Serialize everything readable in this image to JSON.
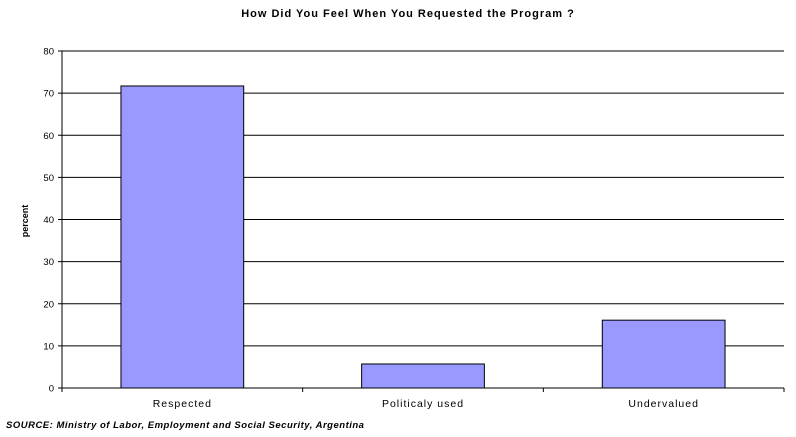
{
  "chart_data": {
    "type": "bar",
    "title": "How Did You Feel When You Requested the Program ?",
    "ylabel": "percent",
    "xlabel": "",
    "categories": [
      "Respected",
      "Politicaly used",
      "Undervalued"
    ],
    "values": [
      71.7,
      5.7,
      16.1
    ],
    "ylim": [
      0,
      80
    ],
    "yticks": [
      0,
      10,
      20,
      30,
      40,
      50,
      60,
      70,
      80
    ],
    "grid": true,
    "legend": "none",
    "bar_color": "#9999ff",
    "bar_outline": "#000000"
  },
  "source_note": "SOURCE: Ministry of Labor, Employment and Social Security, Argentina"
}
